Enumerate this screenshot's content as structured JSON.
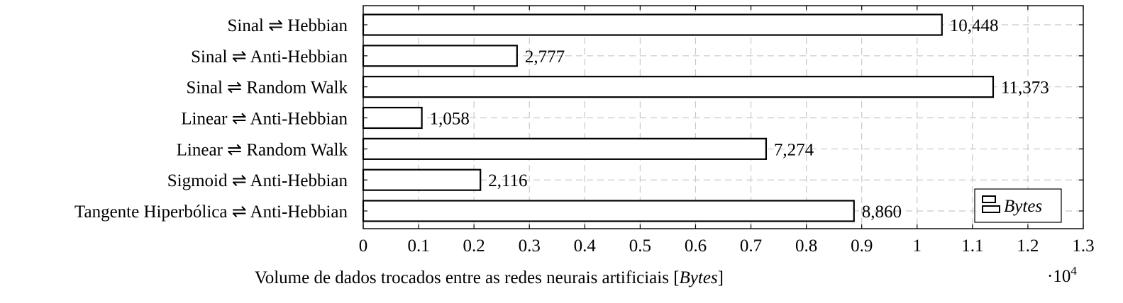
{
  "chart_data": {
    "type": "bar",
    "orientation": "horizontal",
    "categories": [
      "Sinal ⇌ Hebbian",
      "Sinal ⇌ Anti-Hebbian",
      "Sinal ⇌ Random Walk",
      "Linear ⇌ Anti-Hebbian",
      "Linear ⇌ Random Walk",
      "Sigmoid ⇌ Anti-Hebbian",
      "Tangente Hiperbólica ⇌ Anti-Hebbian"
    ],
    "series": [
      {
        "name": "Bytes",
        "values": [
          10448,
          2777,
          11373,
          1058,
          7274,
          2116,
          8860
        ],
        "data_labels": [
          "10,448",
          "2,777",
          "11,373",
          "1,058",
          "7,274",
          "2,116",
          "8,860"
        ]
      }
    ],
    "xlabel": "Volume de dados trocados entre as redes neurais artificiais [",
    "xlabel_italic": "Bytes",
    "xlabel_end": "]",
    "x_scale_prefix": "·10",
    "x_scale_exp": "4",
    "xlim": [
      0,
      13000
    ],
    "x_ticks": [
      0,
      1000,
      2000,
      3000,
      4000,
      5000,
      6000,
      7000,
      8000,
      9000,
      10000,
      11000,
      12000,
      13000
    ],
    "x_tick_labels": [
      "0",
      "0.1",
      "0.2",
      "0.3",
      "0.4",
      "0.5",
      "0.6",
      "0.7",
      "0.8",
      "0.9",
      "1",
      "1.1",
      "1.2",
      "1.3"
    ],
    "grid": true,
    "legend_position": "bottom-right",
    "colors": {
      "bar_fill": "#ffffff",
      "bar_stroke": "#000000",
      "grid": "#c8c8c8"
    }
  }
}
